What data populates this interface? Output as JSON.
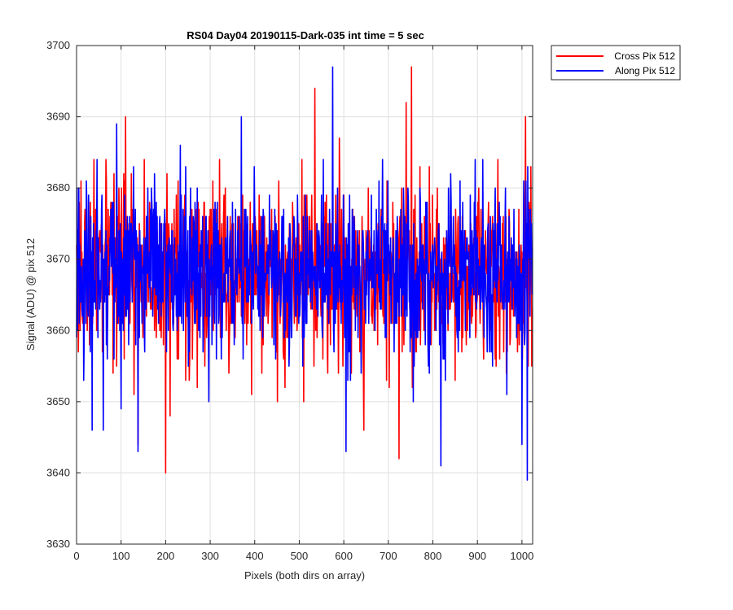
{
  "chart_data": {
    "type": "line",
    "title": "RS04 Day04 20190115-Dark-035 int time = 5 sec",
    "xlabel": "Pixels (both dirs on array)",
    "ylabel": "Signal (ADU) @ pix 512",
    "xlim": [
      0,
      1024
    ],
    "ylim": [
      3630,
      3700
    ],
    "xticks": [
      0,
      100,
      200,
      300,
      400,
      500,
      600,
      700,
      800,
      900,
      1000
    ],
    "yticks": [
      3630,
      3640,
      3650,
      3660,
      3670,
      3680,
      3690,
      3700
    ],
    "grid": true,
    "legend_position": "outside-top-right",
    "colors": {
      "cross": "#ff0000",
      "along": "#0000ff",
      "grid": "#dfdfdf",
      "axis": "#262626"
    },
    "series": [
      {
        "name": "Cross Pix 512",
        "color": "#ff0000",
        "noise": {
          "points": 1024,
          "mean": 3668,
          "std": 6,
          "seed": 17
        },
        "anchors": [
          {
            "x": 10,
            "y": 3681
          },
          {
            "x": 110,
            "y": 3690
          },
          {
            "x": 138,
            "y": 3644
          },
          {
            "x": 200,
            "y": 3640
          },
          {
            "x": 210,
            "y": 3648
          },
          {
            "x": 535,
            "y": 3694
          },
          {
            "x": 590,
            "y": 3687
          },
          {
            "x": 645,
            "y": 3646
          },
          {
            "x": 724,
            "y": 3642
          },
          {
            "x": 740,
            "y": 3692
          },
          {
            "x": 752,
            "y": 3697
          },
          {
            "x": 1008,
            "y": 3690
          },
          {
            "x": 1020,
            "y": 3683
          }
        ]
      },
      {
        "name": "Along Pix 512",
        "color": "#0000ff",
        "noise": {
          "points": 1024,
          "mean": 3668,
          "std": 6,
          "seed": 91
        },
        "anchors": [
          {
            "x": 35,
            "y": 3646
          },
          {
            "x": 60,
            "y": 3646
          },
          {
            "x": 90,
            "y": 3689
          },
          {
            "x": 138,
            "y": 3643
          },
          {
            "x": 233,
            "y": 3686
          },
          {
            "x": 370,
            "y": 3690
          },
          {
            "x": 575,
            "y": 3697
          },
          {
            "x": 605,
            "y": 3643
          },
          {
            "x": 818,
            "y": 3641
          },
          {
            "x": 1000,
            "y": 3644
          },
          {
            "x": 1012,
            "y": 3639
          }
        ]
      }
    ]
  }
}
